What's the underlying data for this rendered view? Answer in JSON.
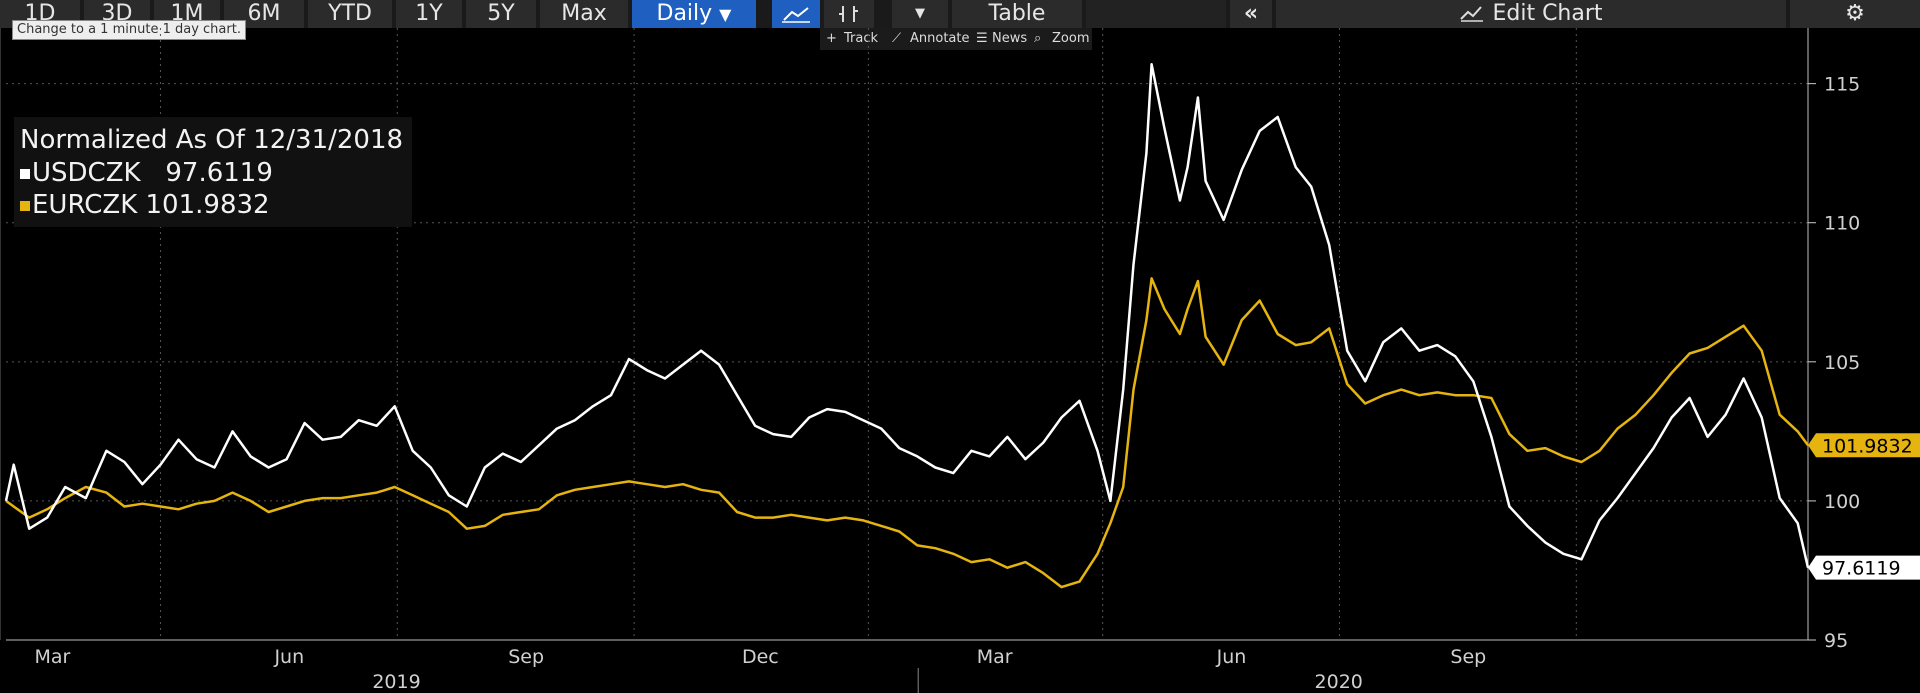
{
  "toolbar": {
    "ranges": [
      "1D",
      "3D",
      "1M",
      "6M",
      "YTD",
      "1Y",
      "5Y",
      "Max"
    ],
    "frequency": "Daily",
    "table_label": "Table",
    "edit_chart_label": "Edit Chart",
    "tooltip": "Change to a 1 minute 1 day chart."
  },
  "subtoolbar": {
    "track": "Track",
    "annotate": "Annotate",
    "news": "News",
    "zoom": "Zoom"
  },
  "legend": {
    "title": "Normalized As Of 12/31/2018",
    "usd_label": "USDCZK   97.6119",
    "eur_label": "EURCZK 101.9832"
  },
  "colors": {
    "usd": "#ffffff",
    "eur": "#e5b40e",
    "grid": "#555555"
  },
  "chart_data": {
    "type": "line",
    "title": "Normalized As Of 12/31/2018",
    "ylim": [
      95,
      117
    ],
    "yticks": [
      95,
      100,
      105,
      110,
      115
    ],
    "month_labels": [
      "Mar",
      "Jun",
      "Sep",
      "Dec",
      "Mar",
      "Jun",
      "Sep"
    ],
    "year_labels": [
      "2019",
      "2020"
    ],
    "grid": true,
    "legend_position": "top-left",
    "x_range": [
      "2018-12-31",
      "2020-11-30"
    ],
    "series": [
      {
        "name": "USDCZK",
        "last_label": "97.6119",
        "points": [
          [
            "2018-12-31",
            100.0
          ],
          [
            "2019-01-03",
            101.3
          ],
          [
            "2019-01-09",
            99.0
          ],
          [
            "2019-01-16",
            99.4
          ],
          [
            "2019-01-23",
            100.5
          ],
          [
            "2019-01-31",
            100.1
          ],
          [
            "2019-02-08",
            101.8
          ],
          [
            "2019-02-15",
            101.4
          ],
          [
            "2019-02-22",
            100.6
          ],
          [
            "2019-03-01",
            101.3
          ],
          [
            "2019-03-08",
            102.2
          ],
          [
            "2019-03-15",
            101.5
          ],
          [
            "2019-03-22",
            101.2
          ],
          [
            "2019-03-29",
            102.5
          ],
          [
            "2019-04-05",
            101.6
          ],
          [
            "2019-04-12",
            101.2
          ],
          [
            "2019-04-19",
            101.5
          ],
          [
            "2019-04-26",
            102.8
          ],
          [
            "2019-05-03",
            102.2
          ],
          [
            "2019-05-10",
            102.3
          ],
          [
            "2019-05-17",
            102.9
          ],
          [
            "2019-05-24",
            102.7
          ],
          [
            "2019-05-31",
            103.4
          ],
          [
            "2019-06-07",
            101.8
          ],
          [
            "2019-06-14",
            101.2
          ],
          [
            "2019-06-21",
            100.2
          ],
          [
            "2019-06-28",
            99.8
          ],
          [
            "2019-07-05",
            101.2
          ],
          [
            "2019-07-12",
            101.7
          ],
          [
            "2019-07-19",
            101.4
          ],
          [
            "2019-07-26",
            102.0
          ],
          [
            "2019-08-02",
            102.6
          ],
          [
            "2019-08-09",
            102.9
          ],
          [
            "2019-08-16",
            103.4
          ],
          [
            "2019-08-23",
            103.8
          ],
          [
            "2019-08-30",
            105.1
          ],
          [
            "2019-09-06",
            104.7
          ],
          [
            "2019-09-13",
            104.4
          ],
          [
            "2019-09-20",
            104.9
          ],
          [
            "2019-09-27",
            105.4
          ],
          [
            "2019-10-04",
            104.9
          ],
          [
            "2019-10-11",
            103.8
          ],
          [
            "2019-10-18",
            102.7
          ],
          [
            "2019-10-25",
            102.4
          ],
          [
            "2019-11-01",
            102.3
          ],
          [
            "2019-11-08",
            103.0
          ],
          [
            "2019-11-15",
            103.3
          ],
          [
            "2019-11-22",
            103.2
          ],
          [
            "2019-11-29",
            102.9
          ],
          [
            "2019-12-06",
            102.6
          ],
          [
            "2019-12-13",
            101.9
          ],
          [
            "2019-12-20",
            101.6
          ],
          [
            "2019-12-27",
            101.2
          ],
          [
            "2020-01-03",
            101.0
          ],
          [
            "2020-01-10",
            101.8
          ],
          [
            "2020-01-17",
            101.6
          ],
          [
            "2020-01-24",
            102.3
          ],
          [
            "2020-01-31",
            101.5
          ],
          [
            "2020-02-07",
            102.1
          ],
          [
            "2020-02-14",
            103.0
          ],
          [
            "2020-02-21",
            103.6
          ],
          [
            "2020-02-28",
            101.8
          ],
          [
            "2020-03-04",
            100.0
          ],
          [
            "2020-03-09",
            104.0
          ],
          [
            "2020-03-13",
            108.5
          ],
          [
            "2020-03-18",
            112.5
          ],
          [
            "2020-03-20",
            115.7
          ],
          [
            "2020-03-25",
            113.4
          ],
          [
            "2020-03-31",
            110.8
          ],
          [
            "2020-04-03",
            112.0
          ],
          [
            "2020-04-07",
            114.5
          ],
          [
            "2020-04-10",
            111.5
          ],
          [
            "2020-04-17",
            110.1
          ],
          [
            "2020-04-24",
            111.9
          ],
          [
            "2020-05-01",
            113.3
          ],
          [
            "2020-05-08",
            113.8
          ],
          [
            "2020-05-15",
            112.0
          ],
          [
            "2020-05-21",
            111.3
          ],
          [
            "2020-05-28",
            109.2
          ],
          [
            "2020-06-04",
            105.4
          ],
          [
            "2020-06-11",
            104.3
          ],
          [
            "2020-06-18",
            105.7
          ],
          [
            "2020-06-25",
            106.2
          ],
          [
            "2020-07-02",
            105.4
          ],
          [
            "2020-07-09",
            105.6
          ],
          [
            "2020-07-16",
            105.2
          ],
          [
            "2020-07-23",
            104.3
          ],
          [
            "2020-07-30",
            102.3
          ],
          [
            "2020-08-06",
            99.8
          ],
          [
            "2020-08-13",
            99.1
          ],
          [
            "2020-08-20",
            98.5
          ],
          [
            "2020-08-27",
            98.1
          ],
          [
            "2020-09-03",
            97.9
          ],
          [
            "2020-09-10",
            99.3
          ],
          [
            "2020-09-17",
            100.1
          ],
          [
            "2020-09-24",
            101.0
          ],
          [
            "2020-10-01",
            101.9
          ],
          [
            "2020-10-08",
            103.0
          ],
          [
            "2020-10-15",
            103.7
          ],
          [
            "2020-10-22",
            102.3
          ],
          [
            "2020-10-29",
            103.1
          ],
          [
            "2020-11-05",
            104.4
          ],
          [
            "2020-11-12",
            103.0
          ],
          [
            "2020-11-19",
            100.1
          ],
          [
            "2020-11-26",
            99.2
          ],
          [
            "2020-11-30",
            97.6
          ]
        ]
      },
      {
        "name": "EURCZK",
        "last_label": "101.9832",
        "points": [
          [
            "2018-12-31",
            100.0
          ],
          [
            "2019-01-03",
            99.8
          ],
          [
            "2019-01-09",
            99.4
          ],
          [
            "2019-01-16",
            99.7
          ],
          [
            "2019-01-23",
            100.1
          ],
          [
            "2019-01-31",
            100.5
          ],
          [
            "2019-02-08",
            100.3
          ],
          [
            "2019-02-15",
            99.8
          ],
          [
            "2019-02-22",
            99.9
          ],
          [
            "2019-03-01",
            99.8
          ],
          [
            "2019-03-08",
            99.7
          ],
          [
            "2019-03-15",
            99.9
          ],
          [
            "2019-03-22",
            100.0
          ],
          [
            "2019-03-29",
            100.3
          ],
          [
            "2019-04-05",
            100.0
          ],
          [
            "2019-04-12",
            99.6
          ],
          [
            "2019-04-19",
            99.8
          ],
          [
            "2019-04-26",
            100.0
          ],
          [
            "2019-05-03",
            100.1
          ],
          [
            "2019-05-10",
            100.1
          ],
          [
            "2019-05-17",
            100.2
          ],
          [
            "2019-05-24",
            100.3
          ],
          [
            "2019-05-31",
            100.5
          ],
          [
            "2019-06-07",
            100.2
          ],
          [
            "2019-06-14",
            99.9
          ],
          [
            "2019-06-21",
            99.6
          ],
          [
            "2019-06-28",
            99.0
          ],
          [
            "2019-07-05",
            99.1
          ],
          [
            "2019-07-12",
            99.5
          ],
          [
            "2019-07-19",
            99.6
          ],
          [
            "2019-07-26",
            99.7
          ],
          [
            "2019-08-02",
            100.2
          ],
          [
            "2019-08-09",
            100.4
          ],
          [
            "2019-08-16",
            100.5
          ],
          [
            "2019-08-23",
            100.6
          ],
          [
            "2019-08-30",
            100.7
          ],
          [
            "2019-09-06",
            100.6
          ],
          [
            "2019-09-13",
            100.5
          ],
          [
            "2019-09-20",
            100.6
          ],
          [
            "2019-09-27",
            100.4
          ],
          [
            "2019-10-04",
            100.3
          ],
          [
            "2019-10-11",
            99.6
          ],
          [
            "2019-10-18",
            99.4
          ],
          [
            "2019-10-25",
            99.4
          ],
          [
            "2019-11-01",
            99.5
          ],
          [
            "2019-11-08",
            99.4
          ],
          [
            "2019-11-15",
            99.3
          ],
          [
            "2019-11-22",
            99.4
          ],
          [
            "2019-11-29",
            99.3
          ],
          [
            "2019-12-06",
            99.1
          ],
          [
            "2019-12-13",
            98.9
          ],
          [
            "2019-12-20",
            98.4
          ],
          [
            "2019-12-27",
            98.3
          ],
          [
            "2020-01-03",
            98.1
          ],
          [
            "2020-01-10",
            97.8
          ],
          [
            "2020-01-17",
            97.9
          ],
          [
            "2020-01-24",
            97.6
          ],
          [
            "2020-01-31",
            97.8
          ],
          [
            "2020-02-07",
            97.4
          ],
          [
            "2020-02-14",
            96.9
          ],
          [
            "2020-02-21",
            97.1
          ],
          [
            "2020-02-28",
            98.1
          ],
          [
            "2020-03-04",
            99.2
          ],
          [
            "2020-03-09",
            100.5
          ],
          [
            "2020-03-13",
            104.0
          ],
          [
            "2020-03-18",
            106.5
          ],
          [
            "2020-03-20",
            108.0
          ],
          [
            "2020-03-25",
            106.9
          ],
          [
            "2020-03-31",
            106.0
          ],
          [
            "2020-04-03",
            106.9
          ],
          [
            "2020-04-07",
            107.9
          ],
          [
            "2020-04-10",
            105.9
          ],
          [
            "2020-04-17",
            104.9
          ],
          [
            "2020-04-24",
            106.5
          ],
          [
            "2020-05-01",
            107.2
          ],
          [
            "2020-05-08",
            106.0
          ],
          [
            "2020-05-15",
            105.6
          ],
          [
            "2020-05-21",
            105.7
          ],
          [
            "2020-05-28",
            106.2
          ],
          [
            "2020-06-04",
            104.2
          ],
          [
            "2020-06-11",
            103.5
          ],
          [
            "2020-06-18",
            103.8
          ],
          [
            "2020-06-25",
            104.0
          ],
          [
            "2020-07-02",
            103.8
          ],
          [
            "2020-07-09",
            103.9
          ],
          [
            "2020-07-16",
            103.8
          ],
          [
            "2020-07-23",
            103.8
          ],
          [
            "2020-07-30",
            103.7
          ],
          [
            "2020-08-06",
            102.4
          ],
          [
            "2020-08-13",
            101.8
          ],
          [
            "2020-08-20",
            101.9
          ],
          [
            "2020-08-27",
            101.6
          ],
          [
            "2020-09-03",
            101.4
          ],
          [
            "2020-09-10",
            101.8
          ],
          [
            "2020-09-17",
            102.6
          ],
          [
            "2020-09-24",
            103.1
          ],
          [
            "2020-10-01",
            103.8
          ],
          [
            "2020-10-08",
            104.6
          ],
          [
            "2020-10-15",
            105.3
          ],
          [
            "2020-10-22",
            105.5
          ],
          [
            "2020-10-29",
            105.9
          ],
          [
            "2020-11-05",
            106.3
          ],
          [
            "2020-11-12",
            105.4
          ],
          [
            "2020-11-19",
            103.1
          ],
          [
            "2020-11-26",
            102.5
          ],
          [
            "2020-11-30",
            102.0
          ]
        ]
      }
    ]
  }
}
